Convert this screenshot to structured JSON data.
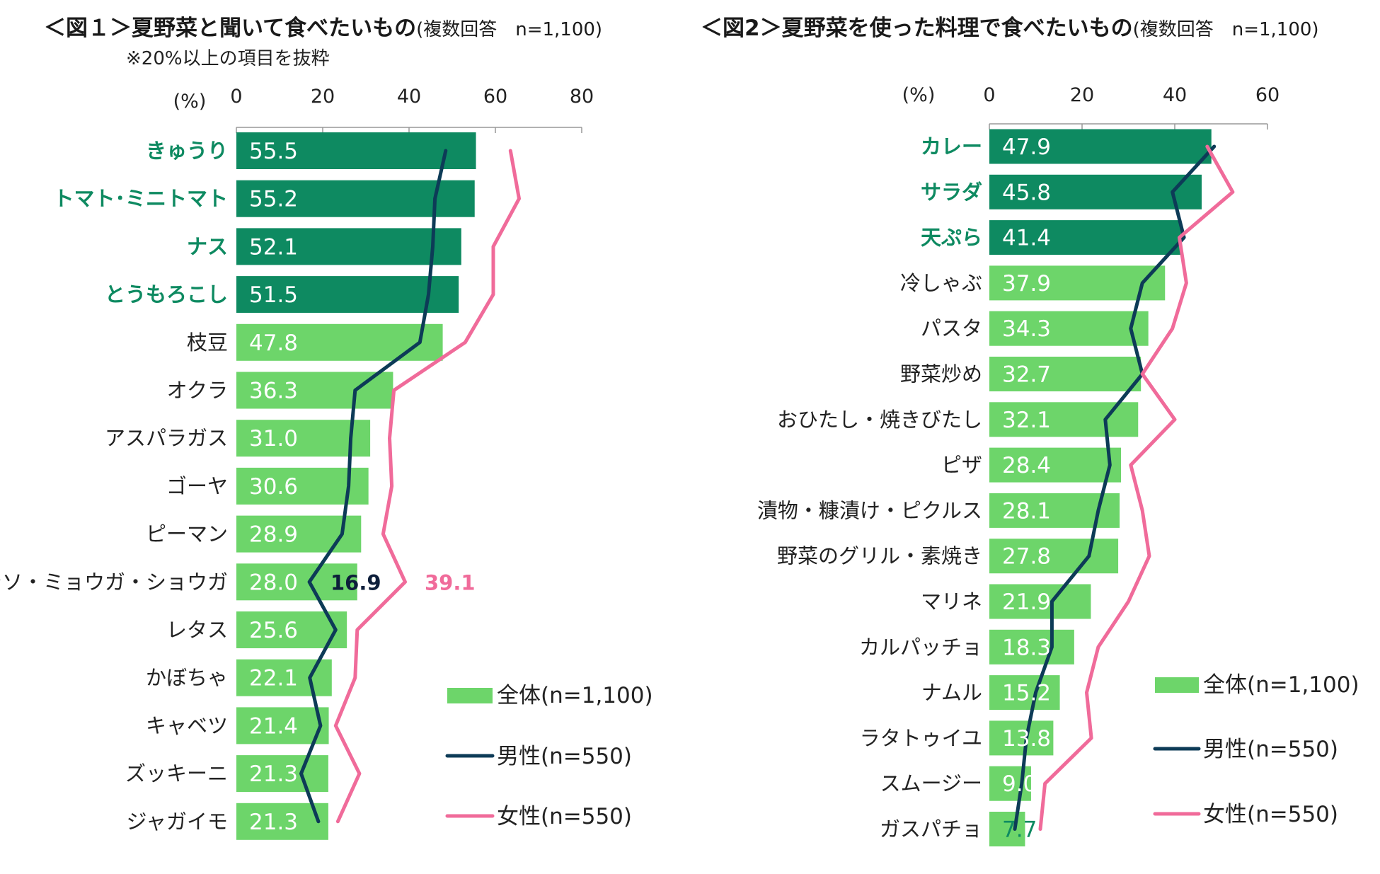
{
  "colors": {
    "bar_highlight": "#0e8a61",
    "bar_normal": "#6dd56a",
    "male_line": "#0d3b57",
    "female_line": "#f06b9a",
    "highlight_text": "#0e8a61",
    "callout_male": "#0d1e3a",
    "callout_female": "#f06b9a"
  },
  "chart_data": [
    {
      "type": "bar",
      "title": "＜図１＞夏野菜と聞いて食べたいもの",
      "subtitle": "(複数回答　n=1,100)",
      "note": "※20%以上の項目を抜粋",
      "unit_label": "(%)",
      "xlim": [
        0,
        80
      ],
      "ticks": [
        0,
        20,
        40,
        60,
        80
      ],
      "categories": [
        "きゅうり",
        "トマト･ミニトマト",
        "ナス",
        "とうもろこし",
        "枝豆",
        "オクラ",
        "アスパラガス",
        "ゴーヤ",
        "ピーマン",
        "シソ・ミョウガ・ショウガ",
        "レタス",
        "かぼちゃ",
        "キャベツ",
        "ズッキーニ",
        "ジャガイモ"
      ],
      "highlight_count": 4,
      "series": [
        {
          "name": "全体(n=1,100)",
          "kind": "bar",
          "values": [
            55.5,
            55.2,
            52.1,
            51.5,
            47.8,
            36.3,
            31.0,
            30.6,
            28.9,
            28.0,
            25.6,
            22.1,
            21.4,
            21.3,
            21.3
          ]
        },
        {
          "name": "男性(n=550)",
          "kind": "line",
          "values": [
            48.5,
            46.0,
            45.5,
            44.5,
            42.5,
            27.5,
            26.5,
            26.0,
            24.5,
            16.9,
            23.0,
            17.0,
            19.5,
            15.0,
            19.0
          ]
        },
        {
          "name": "女性(n=550)",
          "kind": "line",
          "values": [
            63.5,
            65.5,
            59.5,
            59.5,
            53.0,
            36.5,
            35.5,
            36.0,
            34.0,
            39.1,
            28.0,
            27.5,
            23.0,
            28.5,
            23.5
          ]
        }
      ],
      "callouts": {
        "male": "16.9",
        "female": "39.1"
      },
      "callout_index": 9,
      "legend": [
        "全体(n=1,100)",
        "男性(n=550)",
        "女性(n=550)"
      ]
    },
    {
      "type": "bar",
      "title": "＜図2＞夏野菜を使った料理で食べたいもの",
      "subtitle": "(複数回答　n=1,100)",
      "unit_label": "(%)",
      "xlim": [
        0,
        60
      ],
      "ticks": [
        0,
        20,
        40,
        60
      ],
      "categories": [
        "カレー",
        "サラダ",
        "天ぷら",
        "冷しゃぶ",
        "パスタ",
        "野菜炒め",
        "おひたし・焼きびたし",
        "ピザ",
        "漬物・糠漬け・ピクルス",
        "野菜のグリル・素焼き",
        "マリネ",
        "カルパッチョ",
        "ナムル",
        "ラタトゥイユ",
        "スムージー",
        "ガスパチョ"
      ],
      "highlight_count": 3,
      "series": [
        {
          "name": "全体(n=1,100)",
          "kind": "bar",
          "values": [
            47.9,
            45.8,
            41.4,
            37.9,
            34.3,
            32.7,
            32.1,
            28.4,
            28.1,
            27.8,
            21.9,
            18.3,
            15.2,
            13.8,
            9.0,
            7.7
          ]
        },
        {
          "name": "男性(n=550)",
          "kind": "line",
          "values": [
            48.5,
            39.5,
            42.0,
            33.0,
            30.5,
            33.0,
            25.0,
            26.0,
            23.5,
            21.5,
            13.5,
            13.5,
            10.0,
            8.0,
            7.0,
            5.5
          ]
        },
        {
          "name": "女性(n=550)",
          "kind": "line",
          "values": [
            47.0,
            52.5,
            41.0,
            42.5,
            39.5,
            33.0,
            40.0,
            30.5,
            33.0,
            34.5,
            30.0,
            23.5,
            21.0,
            22.0,
            12.0,
            11.0
          ]
        }
      ],
      "legend": [
        "全体(n=1,100)",
        "男性(n=550)",
        "女性(n=550)"
      ]
    }
  ]
}
